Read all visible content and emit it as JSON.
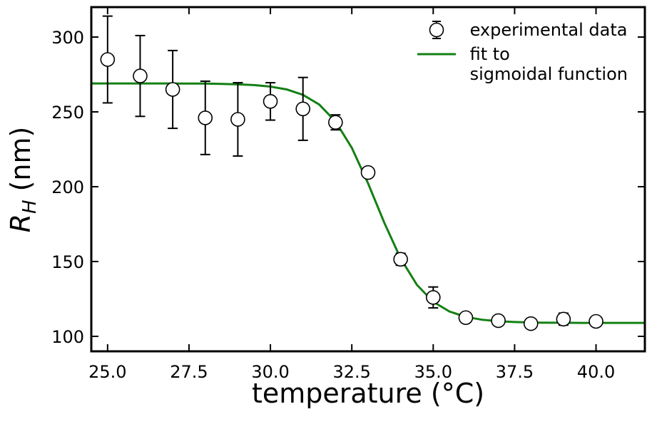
{
  "chart_data": {
    "type": "scatter_fit",
    "xlabel": "temperature (°C)",
    "ylabel": [
      "R",
      "H",
      "(nm)"
    ],
    "xlim": [
      24.5,
      41.5
    ],
    "ylim": [
      90,
      320
    ],
    "xticks": [
      {
        "value": 25,
        "label": "25.0"
      },
      {
        "value": 27.5,
        "label": "27.5"
      },
      {
        "value": 30,
        "label": "30.0"
      },
      {
        "value": 32.5,
        "label": "32.5"
      },
      {
        "value": 35,
        "label": "35.0"
      },
      {
        "value": 37.5,
        "label": "37.5"
      },
      {
        "value": 40,
        "label": "40.0"
      }
    ],
    "yticks": [
      100,
      150,
      200,
      250,
      300
    ],
    "legend": "upper right",
    "series": [
      {
        "name": "experimental data",
        "color": "#000000",
        "marker": "open-circle",
        "x": [
          25,
          26,
          27,
          28,
          29,
          30,
          31,
          32,
          33,
          34,
          35,
          36,
          37,
          38,
          39,
          40
        ],
        "values": [
          285,
          274,
          265,
          246,
          245,
          257,
          252,
          243,
          209.5,
          151.5,
          126,
          112.5,
          110.5,
          108.5,
          111.5,
          110
        ],
        "errors": [
          29,
          27,
          26,
          24.5,
          24.5,
          12.5,
          21,
          5,
          1,
          4,
          7,
          1,
          1,
          1,
          4,
          1
        ]
      },
      {
        "name": "fit to\nsigmoidal function",
        "color": "#138013",
        "marker": "line",
        "x": [
          24.5,
          25,
          25.5,
          26,
          26.5,
          27,
          27.5,
          28,
          28.5,
          29,
          29.5,
          30,
          30.5,
          31,
          31.5,
          32,
          32.5,
          33,
          33.5,
          34,
          34.5,
          35,
          35.5,
          36,
          36.5,
          37,
          37.5,
          38,
          38.5,
          39,
          39.5,
          40,
          40.5,
          41,
          41.5
        ],
        "values": [
          269,
          269,
          269,
          269,
          269,
          269,
          268.9,
          268.9,
          268.7,
          268.4,
          267.9,
          266.9,
          265,
          261.4,
          254.9,
          243.6,
          226,
          202.2,
          175.8,
          152,
          134.4,
          123.1,
          116.6,
          113,
          111.1,
          110.1,
          109.6,
          109.3,
          109.1,
          109.1,
          109,
          109,
          109,
          109,
          109
        ]
      }
    ]
  }
}
